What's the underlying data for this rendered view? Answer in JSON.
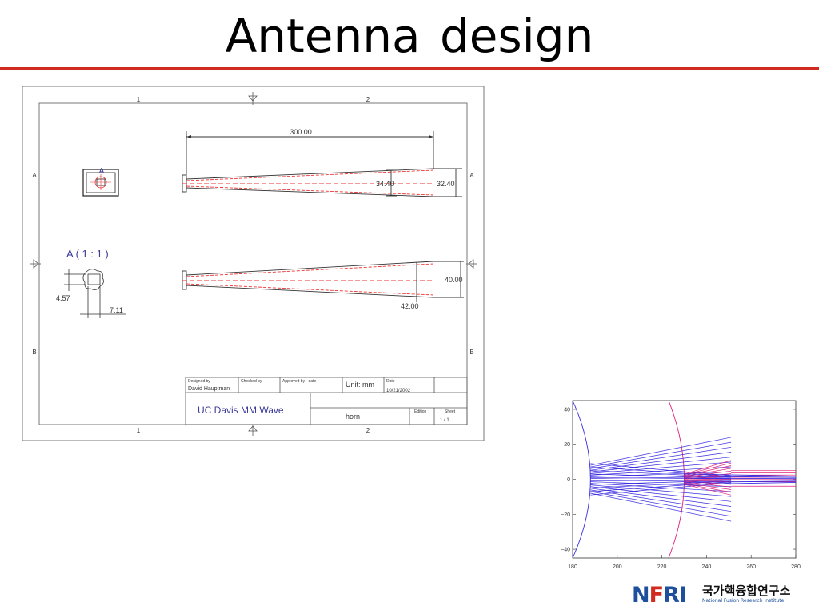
{
  "slide": {
    "title": "Antenna design"
  },
  "drawing": {
    "zone_cols": [
      "1",
      "2"
    ],
    "zone_rows": [
      "A",
      "B"
    ],
    "dims": {
      "length": "300.00",
      "top_inner": "34.40",
      "top_outer": "32.40",
      "bottom_right": "40.00",
      "bottom_inner": "42.00",
      "detail_h": "4.57",
      "detail_w": "7.11"
    },
    "detail_view_label": "A ( 1 : 1 )",
    "section_marker": "A",
    "title_block": {
      "designed_by_label": "Designed by",
      "designed_by": "David Hauptman",
      "checked_by_label": "Checked by",
      "approved_by_label": "Approved by - date",
      "unit": "Unit: mm",
      "date_label": "Date",
      "date": "10/21/2002",
      "org": "UC Davis MM Wave",
      "part": "horn",
      "edition_label": "Edition",
      "sheet_label": "Sheet",
      "sheet": "1  /  1"
    }
  },
  "chart_data": {
    "type": "line",
    "title": "",
    "xlabel": "",
    "ylabel": "",
    "xlim": [
      180,
      280
    ],
    "ylim": [
      -45,
      45
    ],
    "x_ticks": [
      180,
      200,
      220,
      240,
      260,
      280
    ],
    "y_ticks": [
      40,
      20,
      0,
      -20,
      -40
    ],
    "series": [
      {
        "color": "#3a2de0",
        "rays": "blue ray fan from x=188 spreading to x=251, half-angle ~22 at x=251"
      },
      {
        "color": "#e0207a",
        "rays": "magenta rays converging near x=230, continuing to x=280 between y=-10 and y=12"
      }
    ],
    "colors": {
      "blue": "#3a2de0",
      "magenta": "#e0207a"
    }
  },
  "logo": {
    "mark_n": "N",
    "mark_f": "F",
    "mark_ri": "RI",
    "korean": "국가핵융합연구소",
    "english": "National Fusion Research Institute"
  }
}
